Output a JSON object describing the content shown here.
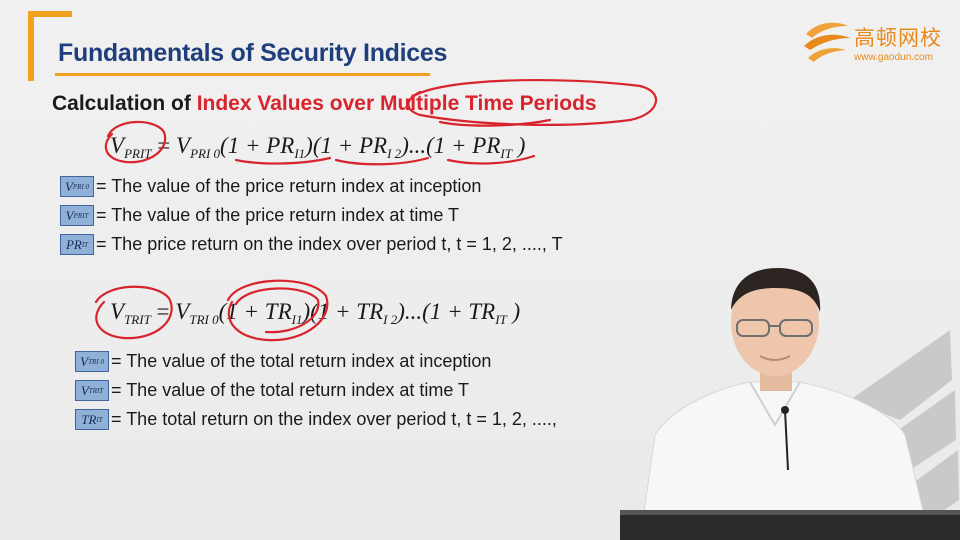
{
  "slide": {
    "title": "Fundamentals of Security Indices",
    "subtitle_prefix": "Calculation of ",
    "subtitle_highlight": "Index Values over Multiple Time Periods"
  },
  "logo": {
    "name": "高顿网校",
    "url": "www.gaodun.com"
  },
  "price_formula": {
    "lhs": "V",
    "lhs_sub": "PRIT",
    "rhs": "V",
    "rhs_sub": "PRI 0",
    "t1": "(1 + PR",
    "t1_sub": "I1",
    "t2": ")(1 + PR",
    "t2_sub": "I 2",
    "t3": ")...(1 + PR",
    "t3_sub": "IT",
    "close": " )"
  },
  "price_defs": [
    {
      "badge": "V",
      "badge_sub": "PRI 0",
      "text": "= The value of the price return index at inception"
    },
    {
      "badge": "V",
      "badge_sub": "PRIT",
      "text": "= The value of the price return index at time T"
    },
    {
      "badge": "PR",
      "badge_sub": "IT",
      "text": "= The price return on the index over period t, t = 1, 2, ...., T"
    }
  ],
  "total_formula": {
    "lhs": "V",
    "lhs_sub": "TRIT",
    "rhs": "V",
    "rhs_sub": "TRI 0",
    "t1": "(1 + TR",
    "t1_sub": "I1",
    "t2": ")(1 + TR",
    "t2_sub": "I 2",
    "t3": ")...(1 + TR",
    "t3_sub": "IT",
    "close": " )"
  },
  "total_defs": [
    {
      "badge": "V",
      "badge_sub": "TRI 0",
      "text": "= The value of the total return index at inception"
    },
    {
      "badge": "V",
      "badge_sub": "TRIT",
      "text": "= The value of the total return index at time T"
    },
    {
      "badge": "TR",
      "badge_sub": "IT",
      "text": "= The total return on the index over period t, t = 1, 2, ....,"
    }
  ],
  "colors": {
    "title_blue": "#1f3f7c",
    "accent_orange": "#f2a01e",
    "highlight_red": "#d8242c",
    "ink_red": "#d8242c",
    "badge_fill": "#8fb0d8"
  }
}
